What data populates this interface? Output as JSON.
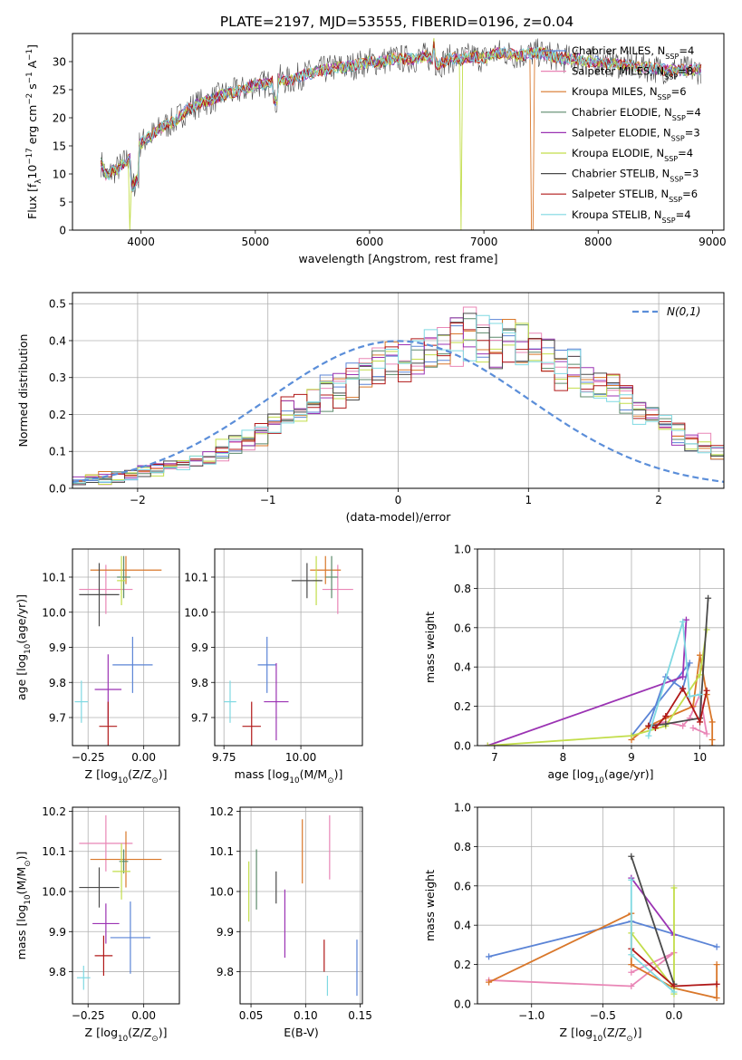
{
  "figure": {
    "title": "PLATE=2197, MJD=53555, FIBERID=0196, z=0.04"
  },
  "series_styles": [
    {
      "name": "Chabrier MILES, N$_{SSP}$=4",
      "color": "#5b84d6"
    },
    {
      "name": "Salpeter MILES, N$_{SSP}$=8",
      "color": "#e986b6"
    },
    {
      "name": "Kroupa MILES, N$_{SSP}$=6",
      "color": "#d9772a"
    },
    {
      "name": "Chabrier ELODIE, N$_{SSP}$=4",
      "color": "#5b8a6b"
    },
    {
      "name": "Salpeter ELODIE, N$_{SSP}$=3",
      "color": "#9b33b3"
    },
    {
      "name": "Kroupa ELODIE, N$_{SSP}$=4",
      "color": "#c2dd4a"
    },
    {
      "name": "Chabrier STELIB, N$_{SSP}$=3",
      "color": "#4a4a4a"
    },
    {
      "name": "Salpeter STELIB, N$_{SSP}$=6",
      "color": "#b01818"
    },
    {
      "name": "Kroupa STELIB, N$_{SSP}$=4",
      "color": "#7fd9e2"
    }
  ],
  "chart_data": [
    {
      "id": "spectrum",
      "type": "line",
      "xlabel": "wavelength [Angstrom, rest frame]",
      "ylabel": "Flux [f$_\\lambda$10$^{-17}$ erg cm$^{-2}$ s$^{-1}$ A$^{-1}$]",
      "xlim": [
        3400,
        9100
      ],
      "ylim": [
        0,
        35
      ],
      "xticks": [
        4000,
        5000,
        6000,
        7000,
        8000,
        9000
      ],
      "yticks": [
        0,
        5,
        10,
        15,
        20,
        25,
        30
      ],
      "grid": false,
      "legend_position": "right",
      "x": [
        3650,
        3700,
        3750,
        3800,
        3850,
        3900,
        3950,
        4000,
        4100,
        4200,
        4300,
        4400,
        4500,
        4600,
        4700,
        4800,
        4900,
        5000,
        5100,
        5200,
        5300,
        5400,
        5500,
        5600,
        5700,
        5800,
        5900,
        6000,
        6100,
        6200,
        6300,
        6400,
        6500,
        6600,
        6700,
        6800,
        6900,
        7000,
        7100,
        7200,
        7300,
        7400,
        7500,
        7600,
        7700,
        7800,
        7900,
        8000,
        8200,
        8400,
        8600,
        8800,
        8900
      ],
      "model_flux": [
        12.0,
        9.5,
        10.5,
        11.0,
        12.0,
        13.0,
        14.5,
        15.5,
        17.0,
        18.5,
        19.5,
        21.5,
        22.5,
        23.0,
        24.0,
        24.5,
        25.0,
        26.0,
        26.0,
        27.0,
        26.5,
        27.5,
        28.0,
        28.5,
        29.0,
        29.0,
        29.5,
        30.0,
        30.0,
        30.5,
        30.5,
        30.5,
        31.0,
        29.5,
        30.5,
        30.5,
        31.0,
        30.5,
        31.5,
        31.5,
        31.0,
        31.5,
        31.5,
        31.0,
        30.5,
        30.5,
        30.0,
        30.0,
        29.5,
        29.0,
        28.5,
        28.5,
        28.5
      ],
      "annotations": [
        {
          "series": "Kroupa ELODIE, N$_{SSP}$=4",
          "description": "drop to 0 near",
          "x": 3900
        },
        {
          "series": "Kroupa ELODIE, N$_{SSP}$=4",
          "description": "drop to 0 near",
          "x": 6800
        },
        {
          "series": "Kroupa MILES, N$_{SSP}$=6",
          "description": "drop to 0 near",
          "x": 7420
        }
      ]
    },
    {
      "id": "residuals",
      "type": "histogram",
      "xlabel": "(data-model)/error",
      "ylabel": "Normed distribution",
      "xlim": [
        -2.5,
        2.5
      ],
      "ylim": [
        0,
        0.53
      ],
      "xticks": [
        -2,
        -1,
        0,
        1,
        2
      ],
      "yticks": [
        0.0,
        0.1,
        0.2,
        0.3,
        0.4,
        0.5
      ],
      "grid": true,
      "legend": [
        {
          "label": "$\\mathcal{N}(0,1)$",
          "style": "dashed",
          "color": "#5b8ed9"
        }
      ],
      "legend_position": "top-right",
      "bin_width": 0.1,
      "bin_start": -2.5,
      "base_density": [
        0.018,
        0.022,
        0.027,
        0.032,
        0.039,
        0.047,
        0.052,
        0.058,
        0.065,
        0.075,
        0.088,
        0.1,
        0.12,
        0.13,
        0.15,
        0.175,
        0.2,
        0.21,
        0.23,
        0.26,
        0.27,
        0.29,
        0.32,
        0.335,
        0.35,
        0.36,
        0.37,
        0.38,
        0.39,
        0.4,
        0.41,
        0.4,
        0.395,
        0.39,
        0.38,
        0.36,
        0.35,
        0.335,
        0.32,
        0.29,
        0.27,
        0.26,
        0.23,
        0.21,
        0.2,
        0.175,
        0.15,
        0.13,
        0.12,
        0.1
      ]
    },
    {
      "id": "age-vs-Z",
      "type": "errorbar",
      "xlabel": "Z [log$_{10}$(Z/Z$_\\odot$)]",
      "ylabel": "age  [log$_{10}$(age/yr)]",
      "xlim": [
        -0.32,
        0.16
      ],
      "ylim": [
        9.62,
        10.18
      ],
      "xticks": [
        -0.25,
        0.0
      ],
      "xtick_labels": [
        "−0.25",
        "0.00"
      ],
      "yticks": [
        9.7,
        9.8,
        9.9,
        10.0,
        10.1
      ],
      "grid": true,
      "points": [
        {
          "series": 0,
          "x": -0.05,
          "y": 9.85,
          "xerr": 0.09,
          "yerr": 0.08
        },
        {
          "series": 1,
          "x": -0.17,
          "y": 10.065,
          "xerr": 0.12,
          "yerr": 0.07
        },
        {
          "series": 2,
          "x": -0.08,
          "y": 10.12,
          "xerr": 0.16,
          "yerr": 0.04
        },
        {
          "series": 3,
          "x": -0.09,
          "y": 10.1,
          "xerr": 0.03,
          "yerr": 0.06
        },
        {
          "series": 4,
          "x": -0.16,
          "y": 9.78,
          "xerr": 0.06,
          "yerr": 0.1
        },
        {
          "series": 5,
          "x": -0.1,
          "y": 10.09,
          "xerr": 0.02,
          "yerr": 0.07
        },
        {
          "series": 6,
          "x": -0.2,
          "y": 10.05,
          "xerr": 0.09,
          "yerr": 0.09
        },
        {
          "series": 7,
          "x": -0.16,
          "y": 9.675,
          "xerr": 0.04,
          "yerr": 0.07
        },
        {
          "series": 8,
          "x": -0.28,
          "y": 9.745,
          "xerr": 0.03,
          "yerr": 0.06
        }
      ]
    },
    {
      "id": "age-vs-mass",
      "type": "errorbar",
      "xlabel": "mass [log$_{10}$(M/M$_\\odot$)]",
      "ylabel": "",
      "xlim": [
        9.72,
        10.2
      ],
      "ylim": [
        9.62,
        10.18
      ],
      "xticks": [
        9.75,
        10.0
      ],
      "xtick_labels": [
        "9.75",
        "10.00"
      ],
      "yticks": [
        9.7,
        9.8,
        9.9,
        10.0,
        10.1
      ],
      "grid": true,
      "points": [
        {
          "series": 0,
          "x": 9.89,
          "y": 9.85,
          "xerr": 0.03,
          "yerr": 0.08
        },
        {
          "series": 1,
          "x": 10.12,
          "y": 10.065,
          "xerr": 0.05,
          "yerr": 0.07
        },
        {
          "series": 2,
          "x": 10.08,
          "y": 10.12,
          "xerr": 0.05,
          "yerr": 0.04
        },
        {
          "series": 3,
          "x": 10.1,
          "y": 10.1,
          "xerr": 0.02,
          "yerr": 0.06
        },
        {
          "series": 4,
          "x": 9.92,
          "y": 9.745,
          "xerr": 0.04,
          "yerr": 0.11
        },
        {
          "series": 5,
          "x": 10.05,
          "y": 10.09,
          "xerr": 0.01,
          "yerr": 0.07
        },
        {
          "series": 6,
          "x": 10.02,
          "y": 10.09,
          "xerr": 0.05,
          "yerr": 0.05
        },
        {
          "series": 7,
          "x": 9.84,
          "y": 9.675,
          "xerr": 0.03,
          "yerr": 0.07
        },
        {
          "series": 8,
          "x": 9.77,
          "y": 9.745,
          "xerr": 0.02,
          "yerr": 0.06
        }
      ]
    },
    {
      "id": "weight-vs-age",
      "type": "line",
      "xlabel": "age  [log$_{10}$(age/yr)]",
      "ylabel": "mass weight",
      "xlim": [
        6.75,
        10.35
      ],
      "ylim": [
        0,
        1.0
      ],
      "xticks": [
        7,
        8,
        9,
        10
      ],
      "yticks": [
        0.0,
        0.2,
        0.4,
        0.6,
        0.8,
        1.0
      ],
      "grid": true,
      "series": [
        {
          "series": 0,
          "x": [
            9.0,
            9.85,
            9.75,
            9.5,
            9.25
          ],
          "y": [
            0.05,
            0.42,
            0.29,
            0.35,
            0.1
          ]
        },
        {
          "series": 1,
          "x": [
            9.25,
            9.5,
            9.75,
            9.85,
            10.0,
            10.1,
            9.9
          ],
          "y": [
            0.1,
            0.12,
            0.1,
            0.14,
            0.26,
            0.06,
            0.09
          ]
        },
        {
          "series": 2,
          "x": [
            9.0,
            9.25,
            9.5,
            9.9,
            10.0,
            10.1,
            10.18,
            10.18,
            10.18
          ],
          "y": [
            0.03,
            0.1,
            0.14,
            0.2,
            0.46,
            0.26,
            0.12,
            0.0,
            0.03
          ]
        },
        {
          "series": 4,
          "x": [
            6.9,
            9.75,
            9.8
          ],
          "y": [
            0.0,
            0.35,
            0.64
          ]
        },
        {
          "series": 5,
          "x": [
            6.9,
            9.0,
            9.5,
            10.0,
            10.1
          ],
          "y": [
            0.0,
            0.05,
            0.1,
            0.36,
            0.59
          ]
        },
        {
          "series": 6,
          "x": [
            9.25,
            9.5,
            10.0,
            10.12
          ],
          "y": [
            0.1,
            0.11,
            0.14,
            0.75
          ]
        },
        {
          "series": 7,
          "x": [
            9.25,
            9.35,
            9.5,
            9.75,
            10.0,
            10.1
          ],
          "y": [
            0.1,
            0.09,
            0.15,
            0.29,
            0.12,
            0.28
          ]
        },
        {
          "series": 8,
          "x": [
            9.25,
            9.75,
            9.85,
            10.0
          ],
          "y": [
            0.05,
            0.63,
            0.25,
            0.26
          ]
        }
      ]
    },
    {
      "id": "mass-vs-Z",
      "type": "errorbar",
      "xlabel": "Z [log$_{10}$(Z/Z$_\\odot$)]",
      "ylabel": "mass [log$_{10}$(M/M$_\\odot$)]",
      "xlim": [
        -0.32,
        0.16
      ],
      "ylim": [
        9.72,
        10.21
      ],
      "xticks": [
        -0.25,
        0.0
      ],
      "xtick_labels": [
        "−0.25",
        "0.00"
      ],
      "yticks": [
        9.8,
        9.9,
        10.0,
        10.1,
        10.2
      ],
      "grid": true,
      "points": [
        {
          "series": 0,
          "x": -0.06,
          "y": 9.885,
          "xerr": 0.09,
          "yerr": 0.09
        },
        {
          "series": 1,
          "x": -0.17,
          "y": 10.12,
          "xerr": 0.12,
          "yerr": 0.07
        },
        {
          "series": 2,
          "x": -0.08,
          "y": 10.08,
          "xerr": 0.16,
          "yerr": 0.07
        },
        {
          "series": 3,
          "x": -0.09,
          "y": 10.075,
          "xerr": 0.02,
          "yerr": 0.03
        },
        {
          "series": 4,
          "x": -0.17,
          "y": 9.92,
          "xerr": 0.06,
          "yerr": 0.05
        },
        {
          "series": 5,
          "x": -0.1,
          "y": 10.05,
          "xerr": 0.04,
          "yerr": 0.07
        },
        {
          "series": 6,
          "x": -0.2,
          "y": 10.01,
          "xerr": 0.09,
          "yerr": 0.05
        },
        {
          "series": 7,
          "x": -0.18,
          "y": 9.84,
          "xerr": 0.04,
          "yerr": 0.05
        },
        {
          "series": 8,
          "x": -0.27,
          "y": 9.785,
          "xerr": 0.03,
          "yerr": 0.03
        }
      ]
    },
    {
      "id": "mass-vs-EBV",
      "type": "errorbar",
      "xlabel": "E(B-V)",
      "ylabel": "",
      "xlim": [
        0.04,
        0.152
      ],
      "ylim": [
        9.72,
        10.21
      ],
      "xticks": [
        0.05,
        0.1,
        0.15
      ],
      "xtick_labels": [
        "0.05",
        "0.10",
        "0.15"
      ],
      "yticks": [
        9.8,
        9.9,
        10.0,
        10.1,
        10.2
      ],
      "grid": true,
      "points": [
        {
          "series": 0,
          "x": 0.147,
          "y": 9.81,
          "xerr": 0,
          "yerr": 0.07
        },
        {
          "series": 1,
          "x": 0.122,
          "y": 10.11,
          "xerr": 0,
          "yerr": 0.08
        },
        {
          "series": 2,
          "x": 0.097,
          "y": 10.1,
          "xerr": 0,
          "yerr": 0.08
        },
        {
          "series": 3,
          "x": 0.055,
          "y": 10.03,
          "xerr": 0,
          "yerr": 0.075
        },
        {
          "series": 4,
          "x": 0.081,
          "y": 9.92,
          "xerr": 0,
          "yerr": 0.085
        },
        {
          "series": 5,
          "x": 0.048,
          "y": 10.0,
          "xerr": 0,
          "yerr": 0.075
        },
        {
          "series": 6,
          "x": 0.073,
          "y": 10.01,
          "xerr": 0,
          "yerr": 0.04
        },
        {
          "series": 7,
          "x": 0.117,
          "y": 9.84,
          "xerr": 0,
          "yerr": 0.04
        },
        {
          "series": 8,
          "x": 0.12,
          "y": 9.765,
          "xerr": 0,
          "yerr": 0.025
        }
      ]
    },
    {
      "id": "weight-vs-Z",
      "type": "line",
      "xlabel": "Z [log$_{10}$(Z/Z$_\\odot$)]",
      "ylabel": "mass weight",
      "xlim": [
        -1.38,
        0.35
      ],
      "ylim": [
        0,
        1.0
      ],
      "xticks": [
        -1.0,
        -0.5,
        0.0
      ],
      "xtick_labels": [
        "−1.0",
        "−0.5",
        "0.0"
      ],
      "yticks": [
        0.0,
        0.2,
        0.4,
        0.6,
        0.8,
        1.0
      ],
      "grid": true,
      "series": [
        {
          "series": 0,
          "x": [
            -1.3,
            -0.3,
            0.3
          ],
          "y": [
            0.24,
            0.42,
            0.29
          ]
        },
        {
          "series": 1,
          "x": [
            -1.3,
            -0.3,
            0.0,
            -0.3
          ],
          "y": [
            0.12,
            0.09,
            0.26,
            0.16
          ]
        },
        {
          "series": 2,
          "x": [
            -1.3,
            -0.3,
            -0.3,
            0.0,
            0.3,
            0.3
          ],
          "y": [
            0.11,
            0.46,
            0.2,
            0.08,
            0.03,
            0.2
          ]
        },
        {
          "series": 4,
          "x": [
            -0.3,
            0.0
          ],
          "y": [
            0.64,
            0.35
          ]
        },
        {
          "series": 5,
          "x": [
            -0.3,
            0.0,
            0.0,
            0.0
          ],
          "y": [
            0.36,
            0.08,
            0.59,
            0.05
          ]
        },
        {
          "series": 6,
          "x": [
            -0.3,
            0.0
          ],
          "y": [
            0.75,
            0.1
          ]
        },
        {
          "series": 7,
          "x": [
            -0.3,
            0.0,
            0.3
          ],
          "y": [
            0.28,
            0.09,
            0.1
          ]
        },
        {
          "series": 8,
          "x": [
            -0.3,
            -0.3,
            0.0
          ],
          "y": [
            0.63,
            0.25,
            0.06
          ]
        }
      ]
    }
  ]
}
